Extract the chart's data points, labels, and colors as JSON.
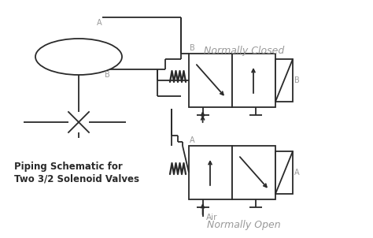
{
  "background_color": "#ffffff",
  "line_color": "#2a2a2a",
  "gray_color": "#999999",
  "figsize": [
    4.74,
    3.02
  ],
  "dpi": 100,
  "subtitle1": "Piping Schematic for",
  "subtitle2": "Two 3/2 Solenoid Valves",
  "nc_label": "Normally Closed",
  "no_label": "Normally Open",
  "air_label": "Air",
  "port_A": "A",
  "port_B": "B"
}
